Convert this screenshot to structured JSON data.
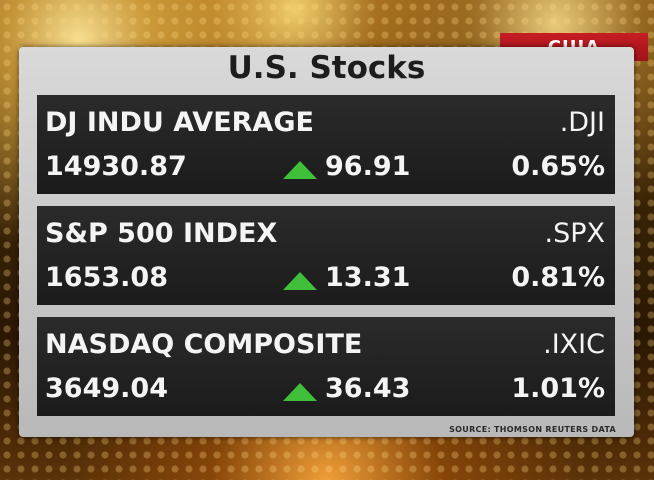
{
  "tag": "США",
  "title": "U.S. Stocks",
  "indices": [
    {
      "name": "DJ INDU AVERAGE",
      "symbol": ".DJI",
      "price": "14930.87",
      "change": "96.91",
      "percent": "0.65%"
    },
    {
      "name": "S&P 500 INDEX",
      "symbol": ".SPX",
      "price": "1653.08",
      "change": "13.31",
      "percent": "0.81%"
    },
    {
      "name": "NASDAQ COMPOSITE",
      "symbol": ".IXIC",
      "price": "3649.04",
      "change": "36.43",
      "percent": "1.01%"
    }
  ],
  "source": "SOURCE: THOMSON REUTERS DATA",
  "colors": {
    "up_arrow": "#3fbf3a",
    "tag_bg": "#c71d24",
    "card_bg": "#1b1b1b"
  },
  "icons": {
    "up": "up-arrow-icon"
  }
}
